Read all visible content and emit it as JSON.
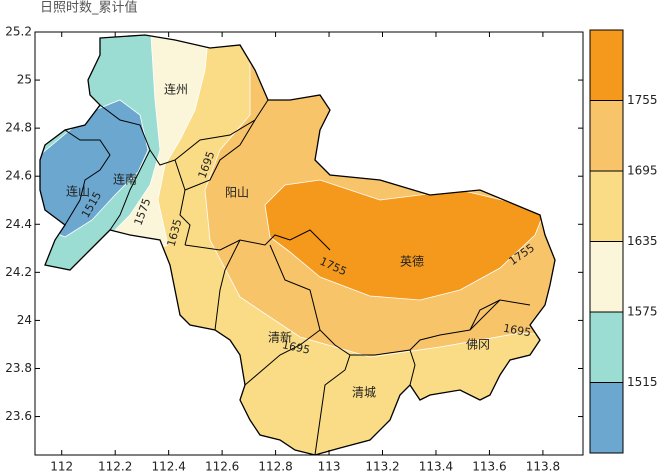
{
  "title": "日照时数_累计值",
  "xlim": [
    111.9,
    113.95
  ],
  "ylim": [
    23.44,
    25.2
  ],
  "xticks": [
    112,
    112.2,
    112.4,
    112.6,
    112.8,
    113,
    113.2,
    113.4,
    113.6,
    113.8
  ],
  "yticks": [
    23.6,
    23.8,
    24,
    24.2,
    24.4,
    24.6,
    24.8,
    25,
    25.2
  ],
  "colorbar": {
    "levels": [
      1515,
      1575,
      1635,
      1695,
      1755
    ],
    "colors": [
      "#6ba7cf",
      "#9bdcd3",
      "#fbf6d9",
      "#f9dc85",
      "#f8c46a",
      "#f5991c"
    ]
  },
  "places": [
    "连州",
    "阳山",
    "连南",
    "连山",
    "英德",
    "清新",
    "清城",
    "佛冈"
  ],
  "contour_labels": [
    1695,
    1695,
    1695,
    1755,
    1755,
    1515,
    1575,
    1635
  ]
}
